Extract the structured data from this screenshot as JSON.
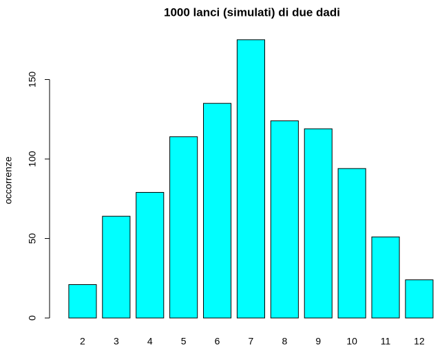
{
  "chart_data": {
    "type": "bar",
    "title": "1000 lanci (simulati) di due dadi",
    "y_label": "occorrenze",
    "categories": [
      "2",
      "3",
      "4",
      "5",
      "6",
      "7",
      "8",
      "9",
      "10",
      "11",
      "12"
    ],
    "values": [
      21,
      64,
      79,
      114,
      135,
      175,
      124,
      119,
      94,
      51,
      24
    ],
    "color": "#00ffff",
    "ylim": [
      -7,
      182
    ],
    "yticks": [
      0,
      50,
      100,
      150
    ],
    "grid": false
  }
}
